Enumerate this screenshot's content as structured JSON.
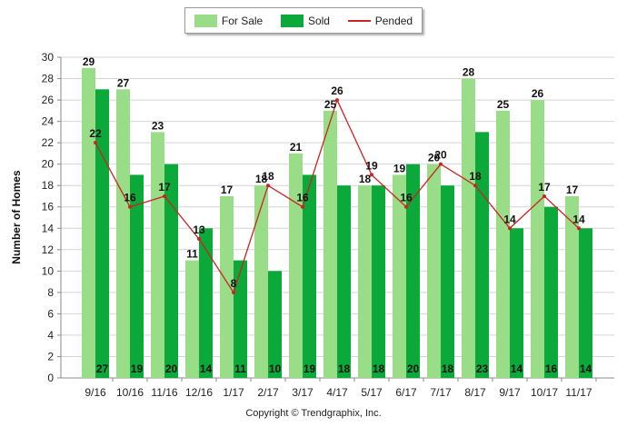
{
  "chart_data": {
    "type": "bar",
    "categories": [
      "9/16",
      "10/16",
      "11/16",
      "12/16",
      "1/17",
      "2/17",
      "3/17",
      "4/17",
      "5/17",
      "6/17",
      "7/17",
      "8/17",
      "9/17",
      "10/17",
      "11/17"
    ],
    "series": [
      {
        "name": "For Sale",
        "type": "bar",
        "color": "#99dd88",
        "values": [
          29,
          27,
          23,
          11,
          17,
          18,
          21,
          25,
          18,
          19,
          20,
          28,
          25,
          26,
          17
        ]
      },
      {
        "name": "Sold",
        "type": "bar",
        "color": "#0ba83a",
        "values": [
          27,
          19,
          20,
          14,
          11,
          10,
          19,
          18,
          18,
          20,
          18,
          23,
          14,
          16,
          14
        ]
      },
      {
        "name": "Pended",
        "type": "line",
        "color": "#cc2222",
        "values": [
          22,
          16,
          17,
          13,
          8,
          18,
          16,
          26,
          19,
          16,
          20,
          18,
          14,
          17,
          14
        ]
      }
    ],
    "ylabel": "Number of Homes",
    "xlabel": "",
    "ylim": [
      0,
      30
    ],
    "yticks": [
      "0",
      "2",
      "4",
      "6",
      "8",
      "10",
      "12",
      "14",
      "16",
      "18",
      "20",
      "22",
      "24",
      "26",
      "28",
      "30"
    ],
    "grid": true,
    "legend_position": "top-center",
    "footer": "Copyright © Trendgraphix, Inc."
  }
}
